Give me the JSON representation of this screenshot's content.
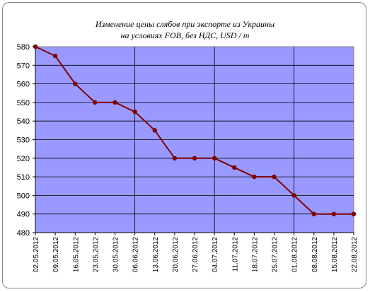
{
  "chart_data": {
    "type": "line",
    "title": "Изменение цены слябов при экспорте из Украины",
    "subtitle": "на условиях FOB, без НДС, USD / т",
    "xlabel": "",
    "ylabel": "",
    "ylim": [
      480,
      580
    ],
    "yticks": [
      480,
      490,
      500,
      510,
      520,
      530,
      540,
      550,
      560,
      570,
      580
    ],
    "grid": true,
    "legend": "none",
    "categories": [
      "02.05.2012",
      "09.05.2012",
      "16.05.2012",
      "23.05.2012",
      "30.05.2012",
      "06.06.2012",
      "13.06.2012",
      "20.06.2012",
      "27.06.2012",
      "04.07.2012",
      "11.07.2012",
      "18.07.2012",
      "25.07.2012",
      "01.08.2012",
      "08.08.2012",
      "15.08.2012",
      "22.08.2012"
    ],
    "series": [
      {
        "values": [
          580,
          575,
          560,
          550,
          550,
          545,
          535,
          520,
          520,
          520,
          515,
          510,
          510,
          500,
          490,
          490,
          490
        ]
      }
    ],
    "colors": {
      "plot_background": "#9999ff",
      "line": "#800000",
      "gridline": "#000000"
    }
  }
}
